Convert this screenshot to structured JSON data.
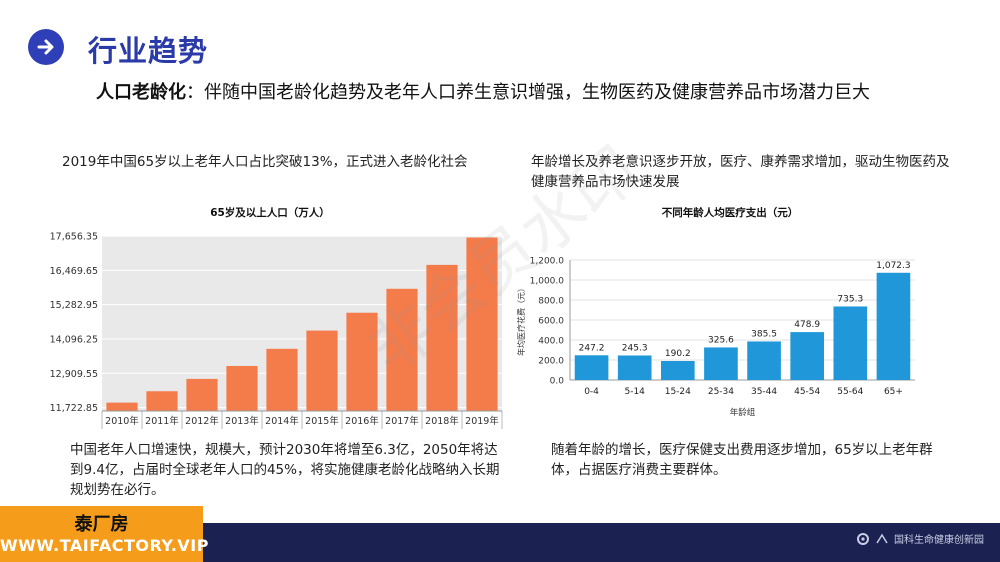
{
  "header": {
    "icon": "arrow-right-circle-icon",
    "title": "行业趋势"
  },
  "subtitle": {
    "bold": "人口老龄化",
    "rest": "：伴随中国老龄化趋势及老年人口养生意识增强，生物医药及健康营养品市场潜力巨大"
  },
  "left": {
    "top_text": "2019年中国65岁以上老年人口占比突破13%，正式进入老龄化社会",
    "bottom_text": "中国老年人口增速快，规模大，预计2030年将增至6.3亿，2050年将达到9.4亿，占届时全球老年人口的45%，将实施健康老龄化战略纳入长期规划势在必行。"
  },
  "right": {
    "top_text": "年龄增长及养老意识逐步开放，医疗、康养需求增加，驱动生物医药及健康营养品市场快速发展",
    "bottom_text": "随着年龄的增长，医疗保健支出费用逐步增加，65岁以上老年群体，占据医疗消费主要群体。"
  },
  "watermark": "非会员水印",
  "brand": {
    "name": "泰厂房",
    "url": "WWW.TAIFACTORY.VIP"
  },
  "footer": {
    "org": "国科生命健康创新园",
    "icon": "gear-logo-icon"
  },
  "colors": {
    "accent": "#2a3aa8",
    "bar_orange": "#f47b4a",
    "bar_blue": "#1f97d8",
    "footer_bg": "#1b2252",
    "brand_bg": "#f59c1a"
  },
  "chart_data": [
    {
      "type": "bar",
      "title": "65岁及以上人口（万人）",
      "categories": [
        "2010年",
        "2011年",
        "2012年",
        "2013年",
        "2014年",
        "2015年",
        "2016年",
        "2017年",
        "2018年",
        "2019年"
      ],
      "values": [
        11894,
        12288,
        12714,
        13161,
        13755,
        14386,
        15003,
        15831,
        16658,
        17603
      ],
      "ytick_labels": [
        "11,722.85",
        "12,909.55",
        "14,096.25",
        "15,282.95",
        "16,469.65",
        "17,656.35"
      ],
      "yticks": [
        11722.85,
        12909.55,
        14096.25,
        15282.95,
        16469.65,
        17656.35
      ],
      "ylim": [
        11722.85,
        17656.35
      ],
      "grid": true
    },
    {
      "type": "bar",
      "title": "不同年龄人均医疗支出（元）",
      "xlabel": "年龄组",
      "ylabel": "年均医疗花费（元）",
      "categories": [
        "0-4",
        "5-14",
        "15-24",
        "25-34",
        "35-44",
        "45-54",
        "55-64",
        "65+"
      ],
      "values": [
        247.2,
        245.3,
        190.2,
        325.6,
        385.5,
        478.9,
        735.3,
        1072.3
      ],
      "value_labels": [
        "247.2",
        "245.3",
        "190.2",
        "325.6",
        "385.5",
        "478.9",
        "735.3",
        "1,072.3"
      ],
      "ytick_labels": [
        "0.0",
        "200.0",
        "400.0",
        "600.0",
        "800.0",
        "1,000.0",
        "1,200.0"
      ],
      "yticks": [
        0,
        200,
        400,
        600,
        800,
        1000,
        1200
      ],
      "ylim": [
        0,
        1200
      ],
      "grid": true
    }
  ]
}
